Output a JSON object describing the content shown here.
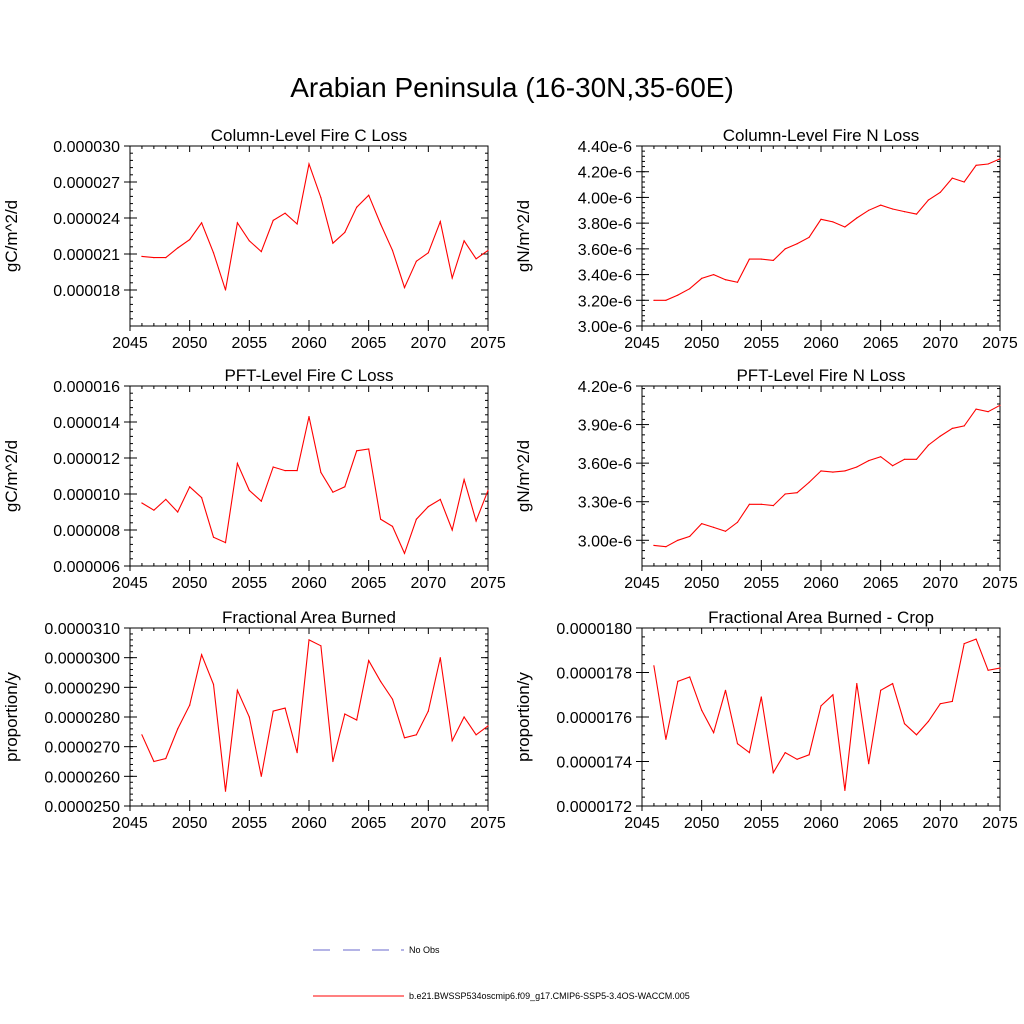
{
  "figure_title": "Arabian Peninsula (16-30N,35-60E)",
  "legend": {
    "items": [
      {
        "label": "No Obs",
        "color": "#6a6acd",
        "style": "dashed"
      },
      {
        "label": "b.e21.BWSSP534oscmip6.f09_g17.CMIP6-SSP5-3.4OS-WACCM.005",
        "color": "#ff0000",
        "style": "solid"
      }
    ]
  },
  "chart_data": [
    {
      "type": "line",
      "title": "Column-Level Fire C Loss",
      "ylabel": "gC/m^2/d",
      "xlabel": "",
      "xlim": [
        2045,
        2075
      ],
      "ylim": [
        1.5e-05,
        3e-05
      ],
      "xticks": [
        2045,
        2050,
        2055,
        2060,
        2065,
        2070,
        2075
      ],
      "yticks": [
        1.8e-05,
        2.1e-05,
        2.4e-05,
        2.7e-05,
        3e-05
      ],
      "yticklabels": [
        "0.000018",
        "0.000021",
        "0.000024",
        "0.000027",
        "0.000030"
      ],
      "series": [
        {
          "name": "b.e21.BWSSP534oscmip6.f09_g17.CMIP6-SSP5-3.4OS-WACCM.005",
          "color": "#ff0000",
          "x": [
            2046,
            2047,
            2048,
            2049,
            2050,
            2051,
            2052,
            2053,
            2054,
            2055,
            2056,
            2057,
            2058,
            2059,
            2060,
            2061,
            2062,
            2063,
            2064,
            2065,
            2066,
            2067,
            2068,
            2069,
            2070,
            2071,
            2072,
            2073,
            2074,
            2075
          ],
          "values": [
            2.08e-05,
            2.07e-05,
            2.07e-05,
            2.15e-05,
            2.22e-05,
            2.36e-05,
            2.11e-05,
            1.8e-05,
            2.36e-05,
            2.21e-05,
            2.12e-05,
            2.38e-05,
            2.44e-05,
            2.35e-05,
            2.85e-05,
            2.57e-05,
            2.19e-05,
            2.28e-05,
            2.49e-05,
            2.59e-05,
            2.35e-05,
            2.13e-05,
            1.82e-05,
            2.04e-05,
            2.11e-05,
            2.37e-05,
            1.9e-05,
            2.21e-05,
            2.06e-05,
            2.13e-05
          ]
        }
      ]
    },
    {
      "type": "line",
      "title": "Column-Level Fire N Loss",
      "ylabel": "gN/m^2/d",
      "xlabel": "",
      "xlim": [
        2045,
        2075
      ],
      "ylim": [
        3e-06,
        4.4e-06
      ],
      "xticks": [
        2045,
        2050,
        2055,
        2060,
        2065,
        2070,
        2075
      ],
      "yticks": [
        3e-06,
        3.2e-06,
        3.4e-06,
        3.6e-06,
        3.8e-06,
        4e-06,
        4.2e-06,
        4.4e-06
      ],
      "yticklabels": [
        "3.00e-6",
        "3.20e-6",
        "3.40e-6",
        "3.60e-6",
        "3.80e-6",
        "4.00e-6",
        "4.20e-6",
        "4.40e-6"
      ],
      "series": [
        {
          "name": "b.e21.BWSSP534oscmip6.f09_g17.CMIP6-SSP5-3.4OS-WACCM.005",
          "color": "#ff0000",
          "x": [
            2046,
            2047,
            2048,
            2049,
            2050,
            2051,
            2052,
            2053,
            2054,
            2055,
            2056,
            2057,
            2058,
            2059,
            2060,
            2061,
            2062,
            2063,
            2064,
            2065,
            2066,
            2067,
            2068,
            2069,
            2070,
            2071,
            2072,
            2073,
            2074,
            2075
          ],
          "values": [
            3.2e-06,
            3.2e-06,
            3.24e-06,
            3.29e-06,
            3.37e-06,
            3.4e-06,
            3.36e-06,
            3.34e-06,
            3.52e-06,
            3.52e-06,
            3.51e-06,
            3.6e-06,
            3.64e-06,
            3.69e-06,
            3.83e-06,
            3.81e-06,
            3.77e-06,
            3.84e-06,
            3.9e-06,
            3.94e-06,
            3.91e-06,
            3.89e-06,
            3.87e-06,
            3.98e-06,
            4.04e-06,
            4.15e-06,
            4.12e-06,
            4.25e-06,
            4.26e-06,
            4.3e-06
          ]
        }
      ]
    },
    {
      "type": "line",
      "title": "PFT-Level Fire C Loss",
      "ylabel": "gC/m^2/d",
      "xlabel": "",
      "xlim": [
        2045,
        2075
      ],
      "ylim": [
        6e-06,
        1.6e-05
      ],
      "xticks": [
        2045,
        2050,
        2055,
        2060,
        2065,
        2070,
        2075
      ],
      "yticks": [
        6e-06,
        8e-06,
        1e-05,
        1.2e-05,
        1.4e-05,
        1.6e-05
      ],
      "yticklabels": [
        "0.000006",
        "0.000008",
        "0.000010",
        "0.000012",
        "0.000014",
        "0.000016"
      ],
      "series": [
        {
          "name": "b.e21.BWSSP534oscmip6.f09_g17.CMIP6-SSP5-3.4OS-WACCM.005",
          "color": "#ff0000",
          "x": [
            2046,
            2047,
            2048,
            2049,
            2050,
            2051,
            2052,
            2053,
            2054,
            2055,
            2056,
            2057,
            2058,
            2059,
            2060,
            2061,
            2062,
            2063,
            2064,
            2065,
            2066,
            2067,
            2068,
            2069,
            2070,
            2071,
            2072,
            2073,
            2074,
            2075
          ],
          "values": [
            9.5e-06,
            9.1e-06,
            9.7e-06,
            9e-06,
            1.04e-05,
            9.8e-06,
            7.6e-06,
            7.3e-06,
            1.17e-05,
            1.02e-05,
            9.6e-06,
            1.15e-05,
            1.13e-05,
            1.13e-05,
            1.43e-05,
            1.12e-05,
            1.01e-05,
            1.04e-05,
            1.24e-05,
            1.25e-05,
            8.6e-06,
            8.2e-06,
            6.7e-06,
            8.6e-06,
            9.3e-06,
            9.7e-06,
            8e-06,
            1.08e-05,
            8.5e-06,
            1.02e-05
          ]
        }
      ]
    },
    {
      "type": "line",
      "title": "PFT-Level Fire N Loss",
      "ylabel": "gN/m^2/d",
      "xlabel": "",
      "xlim": [
        2045,
        2075
      ],
      "ylim": [
        2.8e-06,
        4.2e-06
      ],
      "xticks": [
        2045,
        2050,
        2055,
        2060,
        2065,
        2070,
        2075
      ],
      "yticks": [
        3e-06,
        3.3e-06,
        3.6e-06,
        3.9e-06,
        4.2e-06
      ],
      "yticklabels": [
        "3.00e-6",
        "3.30e-6",
        "3.60e-6",
        "3.90e-6",
        "4.20e-6"
      ],
      "series": [
        {
          "name": "b.e21.BWSSP534oscmip6.f09_g17.CMIP6-SSP5-3.4OS-WACCM.005",
          "color": "#ff0000",
          "x": [
            2046,
            2047,
            2048,
            2049,
            2050,
            2051,
            2052,
            2053,
            2054,
            2055,
            2056,
            2057,
            2058,
            2059,
            2060,
            2061,
            2062,
            2063,
            2064,
            2065,
            2066,
            2067,
            2068,
            2069,
            2070,
            2071,
            2072,
            2073,
            2074,
            2075
          ],
          "values": [
            2.96e-06,
            2.95e-06,
            3e-06,
            3.03e-06,
            3.13e-06,
            3.1e-06,
            3.07e-06,
            3.14e-06,
            3.28e-06,
            3.28e-06,
            3.27e-06,
            3.36e-06,
            3.37e-06,
            3.45e-06,
            3.54e-06,
            3.53e-06,
            3.54e-06,
            3.57e-06,
            3.62e-06,
            3.65e-06,
            3.58e-06,
            3.63e-06,
            3.63e-06,
            3.74e-06,
            3.81e-06,
            3.87e-06,
            3.89e-06,
            4.02e-06,
            4e-06,
            4.05e-06
          ]
        }
      ]
    },
    {
      "type": "line",
      "title": "Fractional Area Burned",
      "ylabel": "proportion/y",
      "xlabel": "",
      "xlim": [
        2045,
        2075
      ],
      "ylim": [
        2.5e-05,
        3.1e-05
      ],
      "xticks": [
        2045,
        2050,
        2055,
        2060,
        2065,
        2070,
        2075
      ],
      "yticks": [
        2.5e-05,
        2.6e-05,
        2.7e-05,
        2.8e-05,
        2.9e-05,
        3e-05,
        3.1e-05
      ],
      "yticklabels": [
        "0.0000250",
        "0.0000260",
        "0.0000270",
        "0.0000280",
        "0.0000290",
        "0.0000300",
        "0.0000310"
      ],
      "series": [
        {
          "name": "b.e21.BWSSP534oscmip6.f09_g17.CMIP6-SSP5-3.4OS-WACCM.005",
          "color": "#ff0000",
          "x": [
            2046,
            2047,
            2048,
            2049,
            2050,
            2051,
            2052,
            2053,
            2054,
            2055,
            2056,
            2057,
            2058,
            2059,
            2060,
            2061,
            2062,
            2063,
            2064,
            2065,
            2066,
            2067,
            2068,
            2069,
            2070,
            2071,
            2072,
            2073,
            2074,
            2075
          ],
          "values": [
            2.74e-05,
            2.65e-05,
            2.66e-05,
            2.76e-05,
            2.84e-05,
            3.01e-05,
            2.91e-05,
            2.55e-05,
            2.89e-05,
            2.8e-05,
            2.6e-05,
            2.82e-05,
            2.83e-05,
            2.68e-05,
            3.06e-05,
            3.04e-05,
            2.65e-05,
            2.81e-05,
            2.79e-05,
            2.99e-05,
            2.92e-05,
            2.86e-05,
            2.73e-05,
            2.74e-05,
            2.82e-05,
            3e-05,
            2.72e-05,
            2.8e-05,
            2.74e-05,
            2.77e-05
          ]
        }
      ]
    },
    {
      "type": "line",
      "title": "Fractional Area Burned - Crop",
      "ylabel": "proportion/y",
      "xlabel": "",
      "xlim": [
        2045,
        2075
      ],
      "ylim": [
        1.72e-05,
        1.8e-05
      ],
      "xticks": [
        2045,
        2050,
        2055,
        2060,
        2065,
        2070,
        2075
      ],
      "yticks": [
        1.72e-05,
        1.74e-05,
        1.76e-05,
        1.78e-05,
        1.8e-05
      ],
      "yticklabels": [
        "0.0000172",
        "0.0000174",
        "0.0000176",
        "0.0000178",
        "0.0000180"
      ],
      "series": [
        {
          "name": "b.e21.BWSSP534oscmip6.f09_g17.CMIP6-SSP5-3.4OS-WACCM.005",
          "color": "#ff0000",
          "x": [
            2046,
            2047,
            2048,
            2049,
            2050,
            2051,
            2052,
            2053,
            2054,
            2055,
            2056,
            2057,
            2058,
            2059,
            2060,
            2061,
            2062,
            2063,
            2064,
            2065,
            2066,
            2067,
            2068,
            2069,
            2070,
            2071,
            2072,
            2073,
            2074,
            2075
          ],
          "values": [
            1.783e-05,
            1.75e-05,
            1.776e-05,
            1.778e-05,
            1.763e-05,
            1.753e-05,
            1.772e-05,
            1.748e-05,
            1.744e-05,
            1.769e-05,
            1.735e-05,
            1.744e-05,
            1.741e-05,
            1.743e-05,
            1.765e-05,
            1.77e-05,
            1.727e-05,
            1.775e-05,
            1.739e-05,
            1.772e-05,
            1.775e-05,
            1.757e-05,
            1.752e-05,
            1.758e-05,
            1.766e-05,
            1.767e-05,
            1.793e-05,
            1.795e-05,
            1.781e-05,
            1.782e-05
          ]
        }
      ]
    }
  ]
}
